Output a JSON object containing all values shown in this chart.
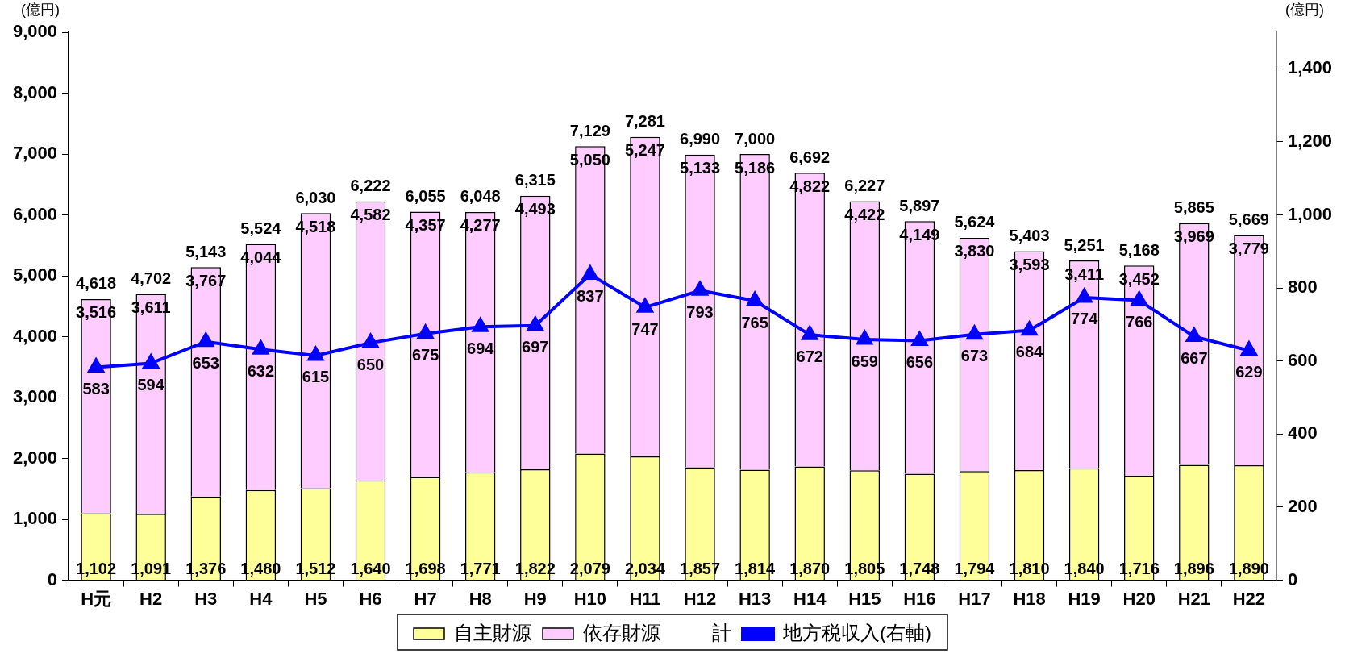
{
  "chart_data": {
    "type": "bar",
    "stacked": true,
    "ylabel": "(億円)",
    "y2label": "(億円)",
    "categories": [
      "H元",
      "H2",
      "H3",
      "H4",
      "H5",
      "H6",
      "H7",
      "H8",
      "H9",
      "H10",
      "H11",
      "H12",
      "H13",
      "H14",
      "H15",
      "H16",
      "H17",
      "H18",
      "H19",
      "H20",
      "H21",
      "H22"
    ],
    "series": [
      {
        "name": "自主財源",
        "color": "#ffff99",
        "values": [
          1102,
          1091,
          1376,
          1480,
          1512,
          1640,
          1698,
          1771,
          1822,
          2079,
          2034,
          1857,
          1814,
          1870,
          1805,
          1748,
          1794,
          1810,
          1840,
          1716,
          1896,
          1890
        ],
        "value_labels": [
          "1,102",
          "1,091",
          "1,376",
          "1,480",
          "1,512",
          "1,640",
          "1,698",
          "1,771",
          "1,822",
          "2,079",
          "2,034",
          "1,857",
          "1,814",
          "1,870",
          "1,805",
          "1,748",
          "1,794",
          "1,810",
          "1,840",
          "1,716",
          "1,896",
          "1,890"
        ]
      },
      {
        "name": "依存財源",
        "color": "#ffccff",
        "values": [
          3516,
          3611,
          3767,
          4044,
          4518,
          4582,
          4357,
          4277,
          4493,
          5050,
          5247,
          5133,
          5186,
          4822,
          4422,
          4149,
          3830,
          3593,
          3411,
          3452,
          3969,
          3779
        ],
        "value_labels": [
          "3,516",
          "3,611",
          "3,767",
          "4,044",
          "4,518",
          "4,582",
          "4,357",
          "4,277",
          "4,493",
          "5,050",
          "5,247",
          "5,133",
          "5,186",
          "4,822",
          "4,422",
          "4,149",
          "3,830",
          "3,593",
          "3,411",
          "3,452",
          "3,969",
          "3,779"
        ]
      },
      {
        "name": "地方税収入(右軸)",
        "type": "line",
        "axis": "y2",
        "marker": "triangle",
        "color": "#0000ff",
        "values": [
          583,
          594,
          653,
          632,
          615,
          650,
          675,
          694,
          697,
          837,
          747,
          793,
          765,
          672,
          659,
          656,
          673,
          684,
          774,
          766,
          667,
          629
        ]
      }
    ],
    "totals": [
      "4,618",
      "4,702",
      "5,143",
      "5,524",
      "6,030",
      "6,222",
      "6,055",
      "6,048",
      "6,315",
      "7,129",
      "7,281",
      "6,990",
      "7,000",
      "6,692",
      "6,227",
      "5,897",
      "5,624",
      "5,403",
      "5,251",
      "5,168",
      "5,865",
      "5,669"
    ],
    "annotations": [
      "計"
    ],
    "ylim": [
      0,
      9000
    ],
    "yticks": [
      {
        "value": 0,
        "label": "0"
      },
      {
        "value": 1000,
        "label": "1,000"
      },
      {
        "value": 2000,
        "label": "2,000"
      },
      {
        "value": 3000,
        "label": "3,000"
      },
      {
        "value": 4000,
        "label": "4,000"
      },
      {
        "value": 5000,
        "label": "5,000"
      },
      {
        "value": 6000,
        "label": "6,000"
      },
      {
        "value": 7000,
        "label": "7,000"
      },
      {
        "value": 8000,
        "label": "8,000"
      },
      {
        "value": 9000,
        "label": "9,000"
      }
    ],
    "y2lim": [
      0,
      1500
    ],
    "y2ticks": [
      0,
      200,
      400,
      600,
      800,
      {
        "value": 1000,
        "label": "1,000"
      },
      {
        "value": 1200,
        "label": "1,200"
      },
      {
        "value": 1400,
        "label": "1,400"
      }
    ],
    "data_labels": true,
    "grid": false,
    "legend": "bottom"
  }
}
